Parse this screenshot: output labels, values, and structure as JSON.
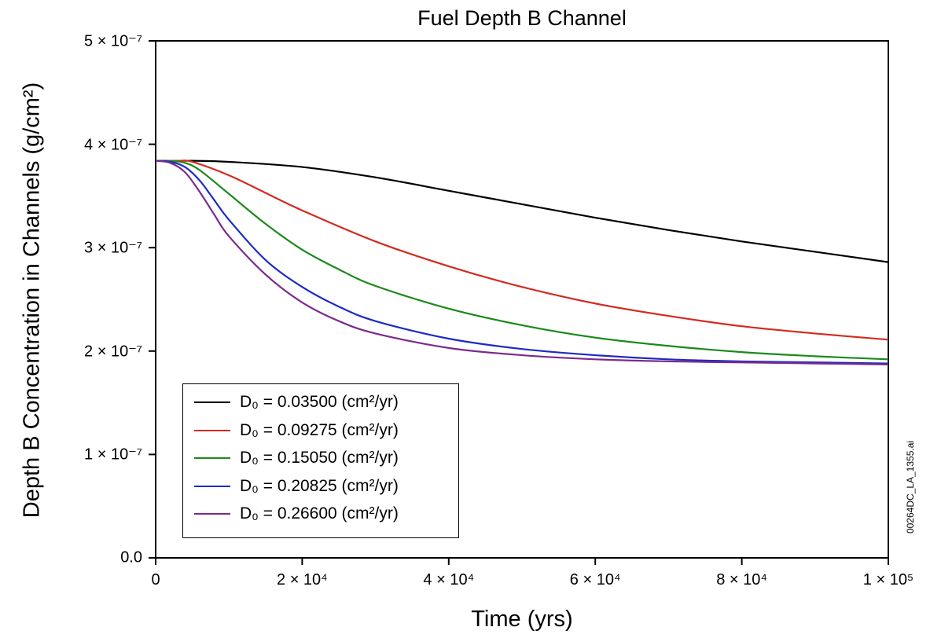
{
  "chart_data": {
    "type": "line",
    "title": "Fuel Depth B Channel",
    "xlabel": "Time (yrs)",
    "ylabel": "Depth B Concentration in Channels (g/cm²)",
    "xlim": [
      0,
      100000
    ],
    "ylim": [
      0,
      5e-07
    ],
    "x_ticks": [
      {
        "value": 0,
        "label": "0"
      },
      {
        "value": 20000,
        "label": "2 × 10⁴"
      },
      {
        "value": 40000,
        "label": "4 × 10⁴"
      },
      {
        "value": 60000,
        "label": "6 × 10⁴"
      },
      {
        "value": 80000,
        "label": "8 × 10⁴"
      },
      {
        "value": 100000,
        "label": "1 × 10⁵"
      }
    ],
    "y_ticks": [
      {
        "value": 0,
        "label": "0.0"
      },
      {
        "value": 1e-07,
        "label": "1 × 10⁻⁷"
      },
      {
        "value": 2e-07,
        "label": "2 × 10⁻⁷"
      },
      {
        "value": 3e-07,
        "label": "3 × 10⁻⁷"
      },
      {
        "value": 4e-07,
        "label": "4 × 10⁻⁷"
      },
      {
        "value": 5e-07,
        "label": "5 × 10⁻⁷"
      }
    ],
    "grid": false,
    "legend_position": "bottom-left",
    "series": [
      {
        "name": "D₀ = 0.03500 (cm²/yr)",
        "color": "#000000",
        "x": [
          0,
          5000,
          10000,
          20000,
          30000,
          40000,
          50000,
          60000,
          70000,
          80000,
          90000,
          100000
        ],
        "y": [
          3.84e-07,
          3.84e-07,
          3.83e-07,
          3.78e-07,
          3.68e-07,
          3.55e-07,
          3.42e-07,
          3.29e-07,
          3.17e-07,
          3.06e-07,
          2.96e-07,
          2.86e-07
        ]
      },
      {
        "name": "D₀ = 0.09275 (cm²/yr)",
        "color": "#d42a1e",
        "x": [
          0,
          3000,
          5000,
          10000,
          15000,
          20000,
          30000,
          40000,
          50000,
          60000,
          70000,
          80000,
          90000,
          100000
        ],
        "y": [
          3.84e-07,
          3.84e-07,
          3.83e-07,
          3.7e-07,
          3.53e-07,
          3.36e-07,
          3.06e-07,
          2.82e-07,
          2.62e-07,
          2.46e-07,
          2.34e-07,
          2.24e-07,
          2.17e-07,
          2.11e-07
        ]
      },
      {
        "name": "D₀ = 0.15050 (cm²/yr)",
        "color": "#1a8a1a",
        "x": [
          0,
          2000,
          4000,
          6000,
          10000,
          15000,
          20000,
          25000,
          30000,
          40000,
          50000,
          60000,
          70000,
          80000,
          90000,
          100000
        ],
        "y": [
          3.84e-07,
          3.84e-07,
          3.82e-07,
          3.75e-07,
          3.52e-07,
          3.23e-07,
          2.98e-07,
          2.79e-07,
          2.63e-07,
          2.41e-07,
          2.25e-07,
          2.13e-07,
          2.05e-07,
          1.99e-07,
          1.95e-07,
          1.92e-07
        ]
      },
      {
        "name": "D₀ = 0.20825 (cm²/yr)",
        "color": "#1c2bc4",
        "x": [
          0,
          2000,
          4000,
          6000,
          8000,
          10000,
          15000,
          20000,
          25000,
          30000,
          40000,
          50000,
          60000,
          70000,
          80000,
          90000,
          100000
        ],
        "y": [
          3.84e-07,
          3.83e-07,
          3.78e-07,
          3.65e-07,
          3.46e-07,
          3.27e-07,
          2.88e-07,
          2.62e-07,
          2.43e-07,
          2.29e-07,
          2.12e-07,
          2.02e-07,
          1.96e-07,
          1.92e-07,
          1.9e-07,
          1.89e-07,
          1.88e-07
        ]
      },
      {
        "name": "D₀ = 0.26600 (cm²/yr)",
        "color": "#7b2a8c",
        "x": [
          0,
          2000,
          4000,
          6000,
          8000,
          10000,
          15000,
          20000,
          25000,
          30000,
          40000,
          50000,
          60000,
          70000,
          80000,
          90000,
          100000
        ],
        "y": [
          3.84e-07,
          3.82e-07,
          3.73e-07,
          3.54e-07,
          3.32e-07,
          3.11e-07,
          2.74e-07,
          2.47e-07,
          2.29e-07,
          2.17e-07,
          2.03e-07,
          1.96e-07,
          1.92e-07,
          1.9e-07,
          1.89e-07,
          1.88e-07,
          1.87e-07
        ]
      }
    ]
  },
  "watermark": "00264DC_LA_1355.ai"
}
